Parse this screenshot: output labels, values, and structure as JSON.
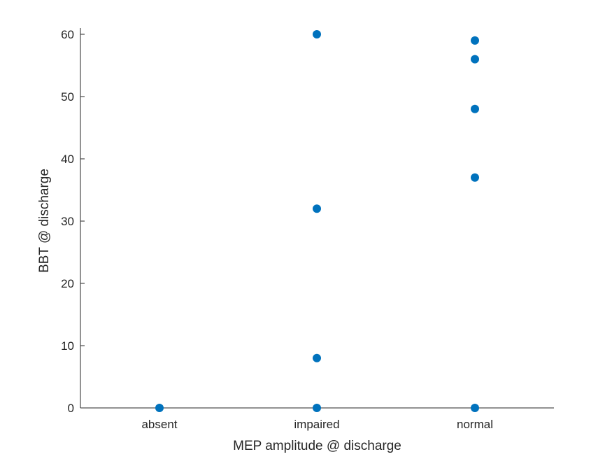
{
  "chart_data": {
    "type": "scatter",
    "xlabel": "MEP amplitude @ discharge",
    "ylabel": "BBT @ discharge",
    "categories": [
      "absent",
      "impaired",
      "normal"
    ],
    "ylim": [
      0,
      60
    ],
    "yticks": [
      0,
      10,
      20,
      30,
      40,
      50,
      60
    ],
    "grid": false,
    "series": [
      {
        "color": "#0072BD",
        "points": [
          {
            "x": "absent",
            "y": 0
          },
          {
            "x": "impaired",
            "y": 60
          },
          {
            "x": "impaired",
            "y": 32
          },
          {
            "x": "impaired",
            "y": 8
          },
          {
            "x": "impaired",
            "y": 0
          },
          {
            "x": "normal",
            "y": 59
          },
          {
            "x": "normal",
            "y": 56
          },
          {
            "x": "normal",
            "y": 48
          },
          {
            "x": "normal",
            "y": 37
          },
          {
            "x": "normal",
            "y": 0
          }
        ]
      }
    ]
  }
}
